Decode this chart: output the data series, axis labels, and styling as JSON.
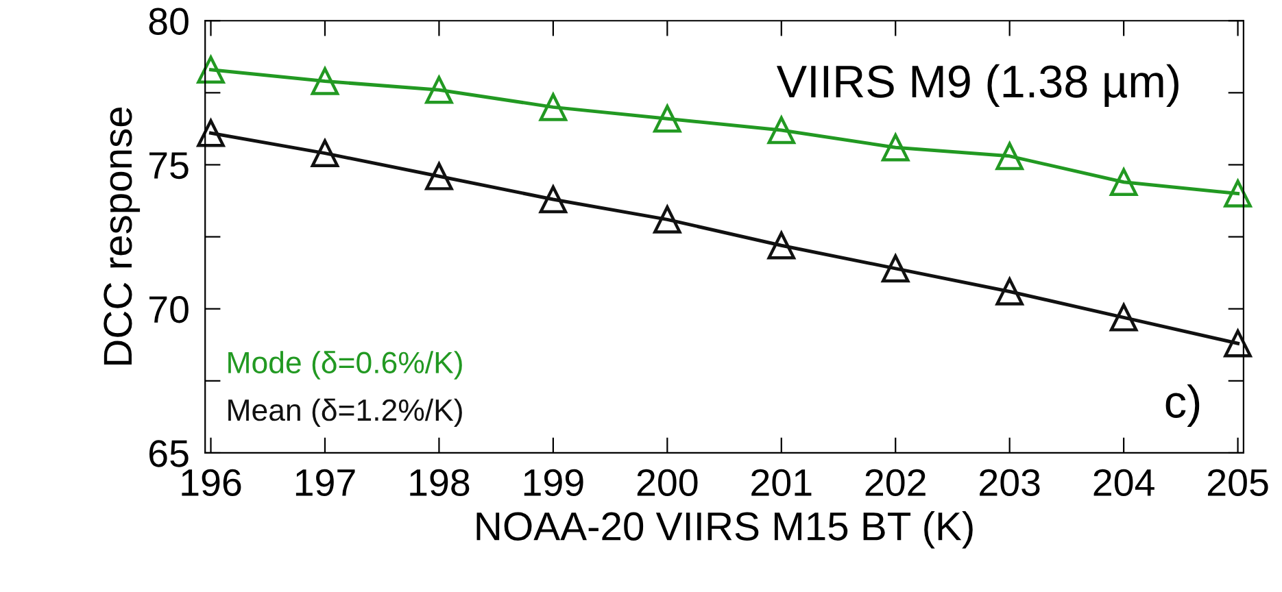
{
  "chart_data": {
    "type": "line",
    "xlabel": "NOAA-20 VIIRS M15 BT (K)",
    "ylabel": "DCC response",
    "annotations": [
      "VIIRS M9 (1.38 µm)",
      "c)"
    ],
    "x": [
      196,
      197,
      198,
      199,
      200,
      201,
      202,
      203,
      204,
      205
    ],
    "series": [
      {
        "name": "Mode (δ=0.6%/K)",
        "color": "#229922",
        "values": [
          78.3,
          77.9,
          77.6,
          77.0,
          76.6,
          76.2,
          75.6,
          75.3,
          74.4,
          74.0
        ]
      },
      {
        "name": "Mean (δ=1.2%/K)",
        "color": "#111111",
        "values": [
          76.1,
          75.4,
          74.6,
          73.8,
          73.1,
          72.2,
          71.4,
          70.6,
          69.7,
          68.8
        ]
      }
    ],
    "xlim": [
      195.95,
      205.05
    ],
    "ylim": [
      65,
      80
    ],
    "xticks": [
      196,
      197,
      198,
      199,
      200,
      201,
      202,
      203,
      204,
      205
    ],
    "yticks": [
      65,
      {
        "value": 67.5,
        "label": null
      },
      70,
      {
        "value": 72.5,
        "label": null
      },
      75,
      {
        "value": 77.5,
        "label": null
      },
      80
    ],
    "marker": "triangle",
    "line_style": "solid",
    "grid": false,
    "legend": "bottom left"
  }
}
